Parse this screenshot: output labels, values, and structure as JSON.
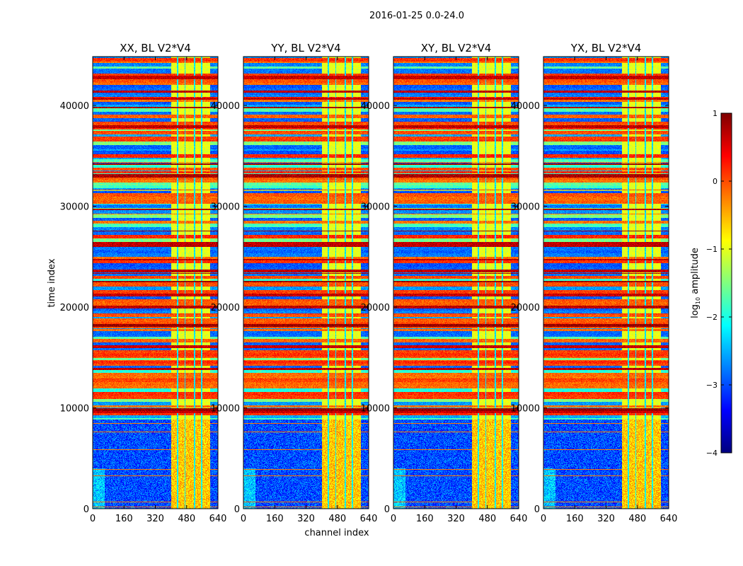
{
  "chart_data": {
    "type": "heatmap",
    "suptitle": "2016-01-25 0.0-24.0",
    "xlabel": "channel index",
    "ylabel": "time index",
    "xlim": [
      0,
      640
    ],
    "ylim": [
      0,
      44850
    ],
    "xticks": [
      0,
      160,
      320,
      480,
      640
    ],
    "yticks": [
      0,
      10000,
      20000,
      30000,
      40000
    ],
    "panels": [
      {
        "title": "XX, BL V2*V4",
        "seed": 11
      },
      {
        "title": "YY, BL V2*V4",
        "seed": 23
      },
      {
        "title": "XY, BL V2*V4",
        "seed": 37
      },
      {
        "title": "YX, BL V2*V4",
        "seed": 51
      }
    ],
    "structure": {
      "quiet_time_range": [
        0,
        8800
      ],
      "quiet_low_channel_level": -3.0,
      "busy_time_range": [
        8800,
        44850
      ],
      "high_band_channels": [
        400,
        600
      ],
      "high_band_level": -0.6,
      "blank_channels": [
        432,
        470,
        520,
        556
      ]
    },
    "colorbar": {
      "label": "log10 amplitude",
      "label_main": "log",
      "label_sub": "10",
      "label_rest": " amplitude",
      "range": [
        -4,
        1
      ],
      "ticks": [
        1,
        0,
        -1,
        -2,
        -3,
        -4
      ],
      "colormap": "jet"
    }
  }
}
